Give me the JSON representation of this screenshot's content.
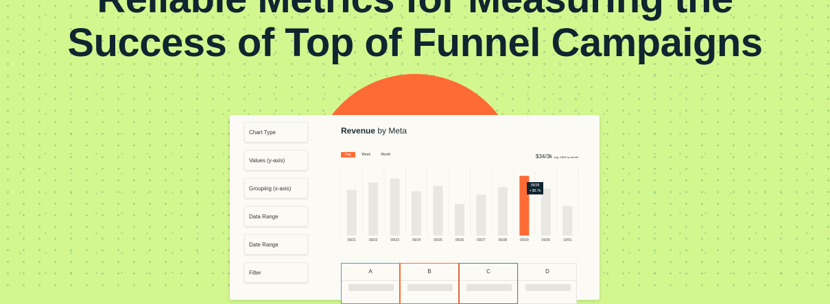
{
  "headline": {
    "line1": "Reliable Metrics for Measuring the",
    "line2": "Success of Top of Funnel Campaigns"
  },
  "sidebar": {
    "items": [
      {
        "label": "Chart Type"
      },
      {
        "label": "Values (y-axis)"
      },
      {
        "label": "Grouping (x-axis)"
      },
      {
        "label": "Data Range"
      },
      {
        "label": "Date Range"
      },
      {
        "label": "Filter"
      }
    ]
  },
  "chart": {
    "title_bold": "Revenue",
    "title_rest": " by Meta",
    "tabs": [
      {
        "label": "Day",
        "active": true
      },
      {
        "label": "Week",
        "active": false
      },
      {
        "label": "Month",
        "active": false
      }
    ],
    "stat_value": "$34/3k",
    "stat_label": "Avg. MRR by Month",
    "tooltip_date": "09/28",
    "tooltip_value": "+ $5.7k"
  },
  "chart_data": {
    "type": "bar",
    "categories": [
      "09/21",
      "09/22",
      "09/23",
      "09/24",
      "09/25",
      "09/26",
      "09/27",
      "09/28",
      "09/29",
      "09/30",
      "10/01"
    ],
    "values": [
      68,
      79,
      85,
      66,
      74,
      47,
      61,
      72,
      89,
      70,
      44
    ],
    "highlight_index": 8,
    "bar_color": "#e8e7e2",
    "highlight_color": "#ff6b35"
  },
  "table": {
    "columns": [
      {
        "label": "A",
        "border": "#4aa3b5"
      },
      {
        "label": "B",
        "border": "#ff6b35"
      },
      {
        "label": "C",
        "border": "#3d8f8a"
      },
      {
        "label": "D",
        "border": "#e6e4dc"
      }
    ]
  },
  "colors": {
    "background": "#d3f78f",
    "headline": "#0f2530",
    "accent": "#ff6b35"
  }
}
